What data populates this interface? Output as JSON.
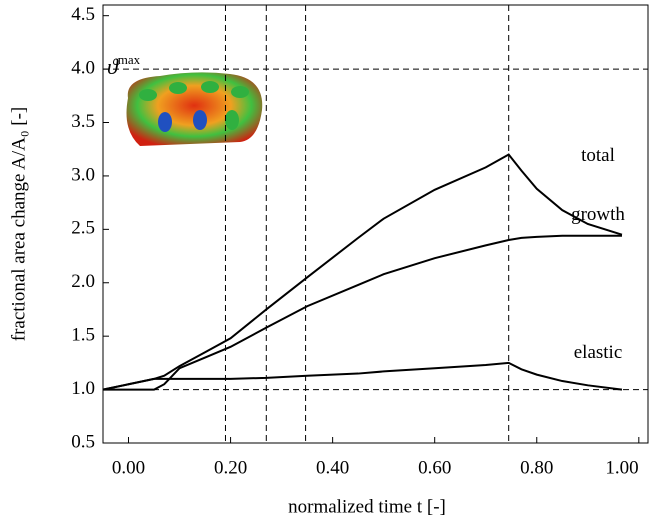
{
  "chart_data": {
    "type": "line",
    "xlabel": "normalized time t [-]",
    "ylabel": "fractional area change A/A₀ [-]",
    "x": [
      -0.05,
      0.0,
      0.05,
      0.07,
      0.1,
      0.15,
      0.2,
      0.27,
      0.35,
      0.45,
      0.5,
      0.6,
      0.7,
      0.745,
      0.77,
      0.8,
      0.85,
      0.9,
      0.967
    ],
    "series": [
      {
        "name": "total",
        "color": "#000000",
        "values": [
          1.0,
          1.05,
          1.1,
          1.13,
          1.22,
          1.35,
          1.48,
          1.75,
          2.05,
          2.42,
          2.6,
          2.87,
          3.08,
          3.2,
          3.05,
          2.88,
          2.68,
          2.55,
          2.45
        ]
      },
      {
        "name": "growth",
        "color": "#000000",
        "values": [
          1.0,
          1.0,
          1.0,
          1.05,
          1.2,
          1.3,
          1.4,
          1.58,
          1.78,
          1.98,
          2.08,
          2.23,
          2.35,
          2.4,
          2.42,
          2.43,
          2.44,
          2.44,
          2.44
        ]
      },
      {
        "name": "elastic",
        "color": "#000000",
        "values": [
          1.0,
          1.05,
          1.1,
          1.1,
          1.1,
          1.1,
          1.1,
          1.11,
          1.13,
          1.15,
          1.17,
          1.2,
          1.23,
          1.25,
          1.19,
          1.14,
          1.08,
          1.04,
          1.0
        ]
      }
    ],
    "xlim": [
      -0.05,
      1.018
    ],
    "ylim": [
      0.5,
      4.6
    ],
    "xticks": [
      {
        "value": 0.0,
        "label": "0.00"
      },
      {
        "value": 0.2,
        "label": "0.20"
      },
      {
        "value": 0.4,
        "label": "0.40"
      },
      {
        "value": 0.6,
        "label": "0.60"
      },
      {
        "value": 0.8,
        "label": "0.80"
      },
      {
        "value": 1.0,
        "label": "1.00"
      }
    ],
    "yticks": [
      0.5,
      {
        "value": 1.0,
        "label": "1.0"
      },
      1.5,
      {
        "value": 2.0,
        "label": "2.0"
      },
      2.5,
      {
        "value": 3.0,
        "label": "3.0"
      },
      3.5,
      {
        "value": 4.0,
        "label": "4.0"
      },
      4.5
    ],
    "vlines": [
      0.19,
      0.27,
      0.347,
      0.745
    ],
    "hlines": [
      1.0,
      4.0
    ],
    "hline_label": {
      "base": "ϑ",
      "sup": "max"
    }
  }
}
